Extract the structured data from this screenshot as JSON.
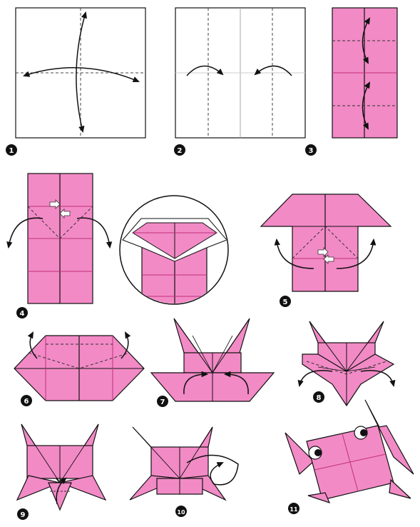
{
  "colors": {
    "paper": "#f28ac6",
    "paper_alt": "#ef7fbf",
    "outline": "#111111",
    "crease": "#c0307a",
    "badge": "#111111",
    "badge_text": "#ffffff",
    "arrow": "#111111",
    "blank_paper": "#ffffff",
    "eye": "#ffffff"
  },
  "steps": [
    {
      "number": "1"
    },
    {
      "number": "2"
    },
    {
      "number": "3"
    },
    {
      "number": "4"
    },
    {
      "number": "5"
    },
    {
      "number": "6"
    },
    {
      "number": "7"
    },
    {
      "number": "8"
    },
    {
      "number": "9"
    },
    {
      "number": "10"
    },
    {
      "number": "11"
    }
  ],
  "icons": {
    "fold_arrow": "curved-arrow-icon",
    "push_arrow": "squash-arrow-icon",
    "turn_over": "turn-over-icon",
    "eye": "eye-icon"
  }
}
